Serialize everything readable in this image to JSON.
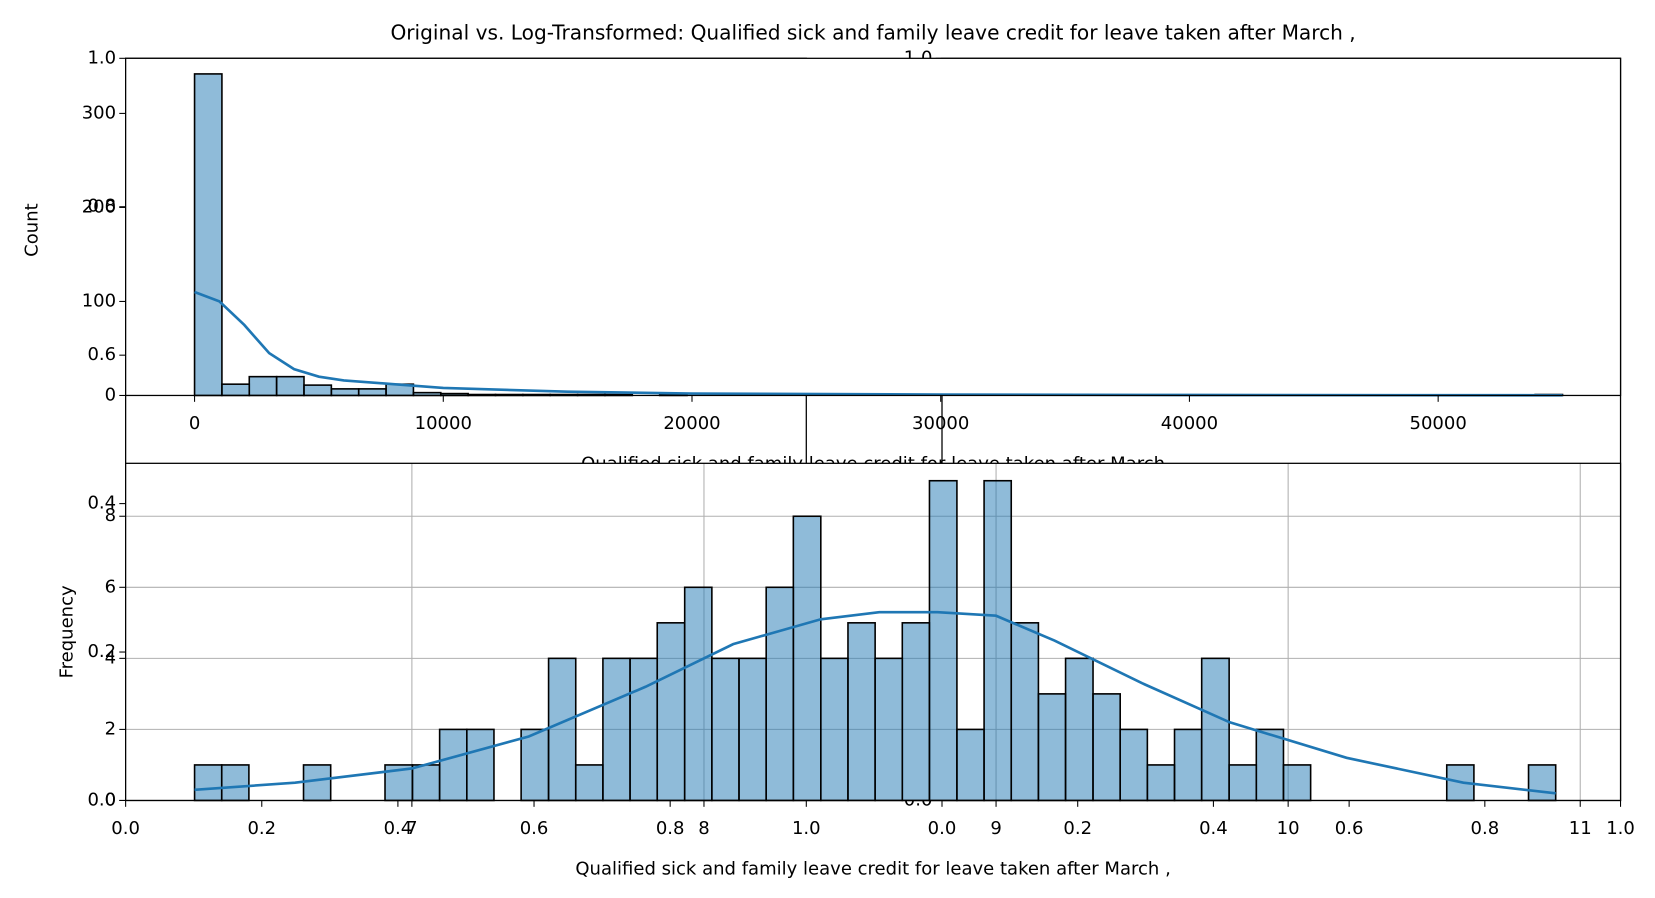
{
  "chart_data": [
    {
      "type": "histogram",
      "title": "Original vs. Log-Transformed: Qualified sick and family leave credit for leave taken after March ,",
      "x_label": "Qualified sick and family leave credit for leave taken after March",
      "y_label": "Count",
      "color": "#1f77b4",
      "bins": [
        0,
        1100,
        2200,
        3300,
        4400,
        5500,
        6600,
        7700,
        8800,
        9900,
        11000,
        12100,
        13200,
        14300,
        15400,
        16500,
        17600,
        18700,
        19800,
        20900,
        22000,
        23100,
        24200,
        25300,
        26400,
        27500,
        28600,
        29700,
        30800,
        31900,
        33000,
        34100,
        35200,
        36300,
        37400,
        38500,
        39600,
        40700,
        41800,
        42900,
        44000,
        45100,
        46200,
        47300,
        48400,
        49500,
        50600,
        51700,
        52800,
        53900,
        55000
      ],
      "values": [
        342,
        12,
        20,
        20,
        11,
        7,
        7,
        12,
        3,
        2,
        1,
        1,
        1,
        1,
        1,
        1,
        0,
        1,
        0,
        0,
        0,
        0,
        0,
        0,
        0,
        0,
        0,
        0,
        0,
        0,
        0,
        0,
        0,
        0,
        0,
        0,
        0,
        0,
        0,
        0,
        0,
        0,
        0,
        0,
        0,
        0,
        0,
        0,
        0,
        1
      ],
      "kde": {
        "x": [
          0,
          1000,
          2000,
          3000,
          4000,
          5000,
          6000,
          8000,
          10000,
          15000,
          20000,
          30000,
          40000,
          55000
        ],
        "values": [
          110,
          100,
          75,
          45,
          28,
          20,
          16,
          12,
          8,
          4,
          2,
          1,
          0.5,
          0.2
        ]
      },
      "xlim": [
        -2771,
        57333
      ],
      "ylim": [
        0,
        358.6
      ],
      "xticks": [
        0,
        10000,
        20000,
        30000,
        40000,
        50000
      ],
      "yticks": [
        0,
        100,
        200,
        300
      ],
      "grid": false
    },
    {
      "type": "histogram",
      "x_label": "Qualified sick and family leave credit for leave taken after March ,",
      "y_label": "Frequency",
      "color": "#1f77b4",
      "bins": [
        6.256,
        6.349,
        6.442,
        6.536,
        6.629,
        6.722,
        6.815,
        6.908,
        7.002,
        7.095,
        7.188,
        7.281,
        7.374,
        7.468,
        7.561,
        7.654,
        7.747,
        7.84,
        7.934,
        8.027,
        8.12,
        8.213,
        8.306,
        8.4,
        8.493,
        8.586,
        8.679,
        8.772,
        8.866,
        8.959,
        9.052,
        9.145,
        9.238,
        9.332,
        9.425,
        9.518,
        9.611,
        9.704,
        9.798,
        9.891,
        9.984,
        10.077,
        10.17,
        10.264,
        10.357,
        10.45,
        10.543,
        10.636,
        10.73,
        10.823,
        10.916
      ],
      "values": [
        1,
        1,
        0,
        0,
        1,
        0,
        0,
        1,
        1,
        2,
        2,
        0,
        2,
        4,
        1,
        4,
        4,
        5,
        6,
        4,
        4,
        6,
        8,
        4,
        5,
        4,
        5,
        9,
        2,
        9,
        5,
        3,
        4,
        3,
        2,
        1,
        2,
        4,
        1,
        2,
        1,
        0,
        0,
        0,
        0,
        0,
        1,
        0,
        0,
        1
      ],
      "kde": {
        "x": [
          6.256,
          6.6,
          7.0,
          7.4,
          7.8,
          8.1,
          8.4,
          8.6,
          8.8,
          9.0,
          9.2,
          9.5,
          9.8,
          10.2,
          10.6,
          10.916
        ],
        "values": [
          0.3,
          0.5,
          0.9,
          1.8,
          3.2,
          4.4,
          5.1,
          5.3,
          5.3,
          5.2,
          4.5,
          3.3,
          2.2,
          1.2,
          0.5,
          0.2
        ]
      },
      "xlim": [
        6.02,
        11.138
      ],
      "ylim": [
        0,
        9.49
      ],
      "xticks": [
        7,
        8,
        9,
        10,
        11
      ],
      "yticks": [
        0,
        2,
        4,
        6,
        8
      ],
      "grid": true
    },
    {
      "type": "axes",
      "xlim": [
        0,
        1
      ],
      "ylim": [
        0,
        1
      ],
      "xticks": [
        {
          "value": 0,
          "label": "0.0"
        },
        {
          "value": 0.2,
          "label": "0.2"
        },
        {
          "value": 0.4,
          "label": "0.4"
        },
        {
          "value": 0.6,
          "label": "0.6"
        },
        {
          "value": 0.8,
          "label": "0.8"
        },
        {
          "value": 1,
          "label": "1.0"
        }
      ],
      "yticks": [
        {
          "value": 0,
          "label": "0.0"
        },
        {
          "value": 0.2,
          "label": "0.2"
        },
        {
          "value": 0.4,
          "label": "0.4"
        },
        {
          "value": 0.6,
          "label": "0.6"
        },
        {
          "value": 0.8,
          "label": "0.8"
        },
        {
          "value": 1,
          "label": "1.0"
        }
      ]
    },
    {
      "type": "axes",
      "xlim": [
        0,
        1
      ],
      "ylim": [
        0,
        1
      ],
      "xticks": [
        {
          "value": 0,
          "label": "0.0"
        },
        {
          "value": 0.2,
          "label": "0.2"
        },
        {
          "value": 0.4,
          "label": "0.4"
        },
        {
          "value": 0.6,
          "label": "0.6"
        },
        {
          "value": 0.8,
          "label": "0.8"
        },
        {
          "value": 1,
          "label": "1.0"
        }
      ],
      "yticks": [
        {
          "value": 0,
          "label": "0.0"
        },
        {
          "value": 1,
          "label": "1.0"
        }
      ]
    }
  ]
}
